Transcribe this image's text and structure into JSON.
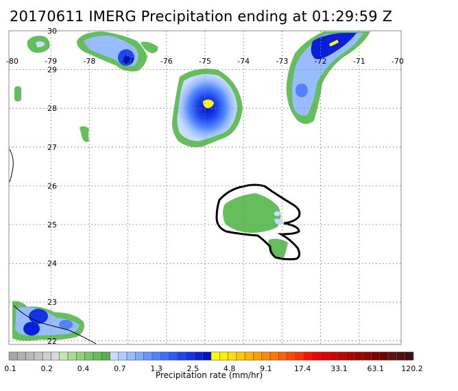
{
  "title": "20170611 IMERG Precipitation ending at 01:29:59 Z",
  "map": {
    "lon_ticks": [
      "-80",
      "-79",
      "-78",
      "-77",
      "-76",
      "-75",
      "-74",
      "-73",
      "-72",
      "-71",
      "-70"
    ],
    "lat_ticks": [
      "30",
      "29",
      "28",
      "27",
      "26",
      "25",
      "24",
      "23",
      "22"
    ],
    "lon_range": [
      -80,
      -70
    ],
    "lat_range": [
      21.8,
      30
    ],
    "grid": true
  },
  "colorbar": {
    "label": "Precipitation rate (mm/hr)",
    "tick_labels": [
      "0.1",
      "0.2",
      "0.4",
      "0.7",
      "1.3",
      "2.5",
      "4.8",
      "9.1",
      "17.4",
      "33.1",
      "63.1",
      "120.2"
    ],
    "colors": [
      "#a6a6a6",
      "#b0b0b0",
      "#bababa",
      "#c4c4c4",
      "#cecece",
      "#d8d8d8",
      "#c2e7b3",
      "#a8dc95",
      "#8fd17d",
      "#79c76b",
      "#66bd5c",
      "#55b14f",
      "#c8dcff",
      "#b0ccff",
      "#98bcff",
      "#80acff",
      "#6898ff",
      "#5084ff",
      "#3a70ff",
      "#2a5cf6",
      "#1e46ee",
      "#1432e6",
      "#0a20d8",
      "#0010c8",
      "#ffff00",
      "#ffef00",
      "#ffdf00",
      "#ffc800",
      "#ffb400",
      "#ffa000",
      "#ff8c00",
      "#ff7800",
      "#ff6000",
      "#ff4800",
      "#ff3000",
      "#ff1000",
      "#f00000",
      "#e00000",
      "#d00000",
      "#c00000",
      "#b00000",
      "#a00000",
      "#900000",
      "#800000",
      "#700000",
      "#601010",
      "#501010",
      "#401010"
    ]
  }
}
